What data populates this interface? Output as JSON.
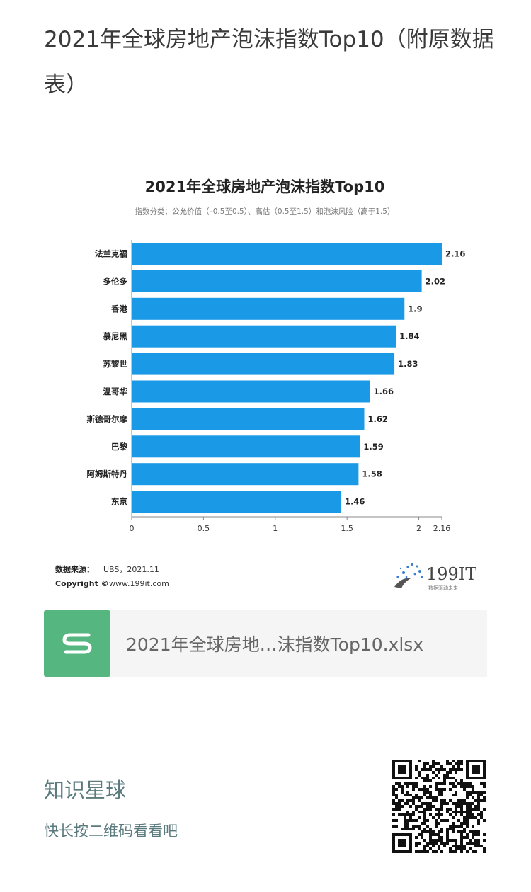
{
  "article": {
    "title": "2021年全球房地产泡沫指数Top10（附原数据表）"
  },
  "chart_data": {
    "type": "bar",
    "orientation": "horizontal",
    "title": "2021年全球房地产泡沫指数Top10",
    "subtitle": "指数分类：公允价值（–0.5至0.5）、高估（0.5至1.5）和泡沫风险（高于1.5）",
    "categories": [
      "法兰克福",
      "多伦多",
      "香港",
      "慕尼黑",
      "苏黎世",
      "温哥华",
      "斯德哥尔摩",
      "巴黎",
      "阿姆斯特丹",
      "东京"
    ],
    "values": [
      2.16,
      2.02,
      1.9,
      1.84,
      1.83,
      1.66,
      1.62,
      1.59,
      1.58,
      1.46
    ],
    "value_labels": [
      "2.16",
      "2.02",
      "1.9",
      "1.84",
      "1.83",
      "1.66",
      "1.62",
      "1.59",
      "1.58",
      "1.46"
    ],
    "x_ticks": [
      "0",
      "0.5",
      "1",
      "1.5",
      "2",
      "2.16"
    ],
    "x_tick_values": [
      0,
      0.5,
      1,
      1.5,
      2,
      2.16
    ],
    "xlim": [
      0,
      2.16
    ],
    "bar_color": "#1a9ae6",
    "grid": false,
    "source_label": "数据来源：",
    "source_text": "UBS，2021.11",
    "copyright_label": "Copyright ©",
    "copyright_text": "www.199it.com",
    "logo_text": "199IT",
    "logo_tagline": "数据驱动未来"
  },
  "attachment": {
    "icon": "spreadsheet-s-icon",
    "icon_color": "#55b77f",
    "file_name": "2021年全球房地…沫指数Top10.xlsx"
  },
  "footer": {
    "title": "知识星球",
    "subtitle": "快长按二维码看看吧",
    "qr_icon": "qr-code-icon"
  }
}
